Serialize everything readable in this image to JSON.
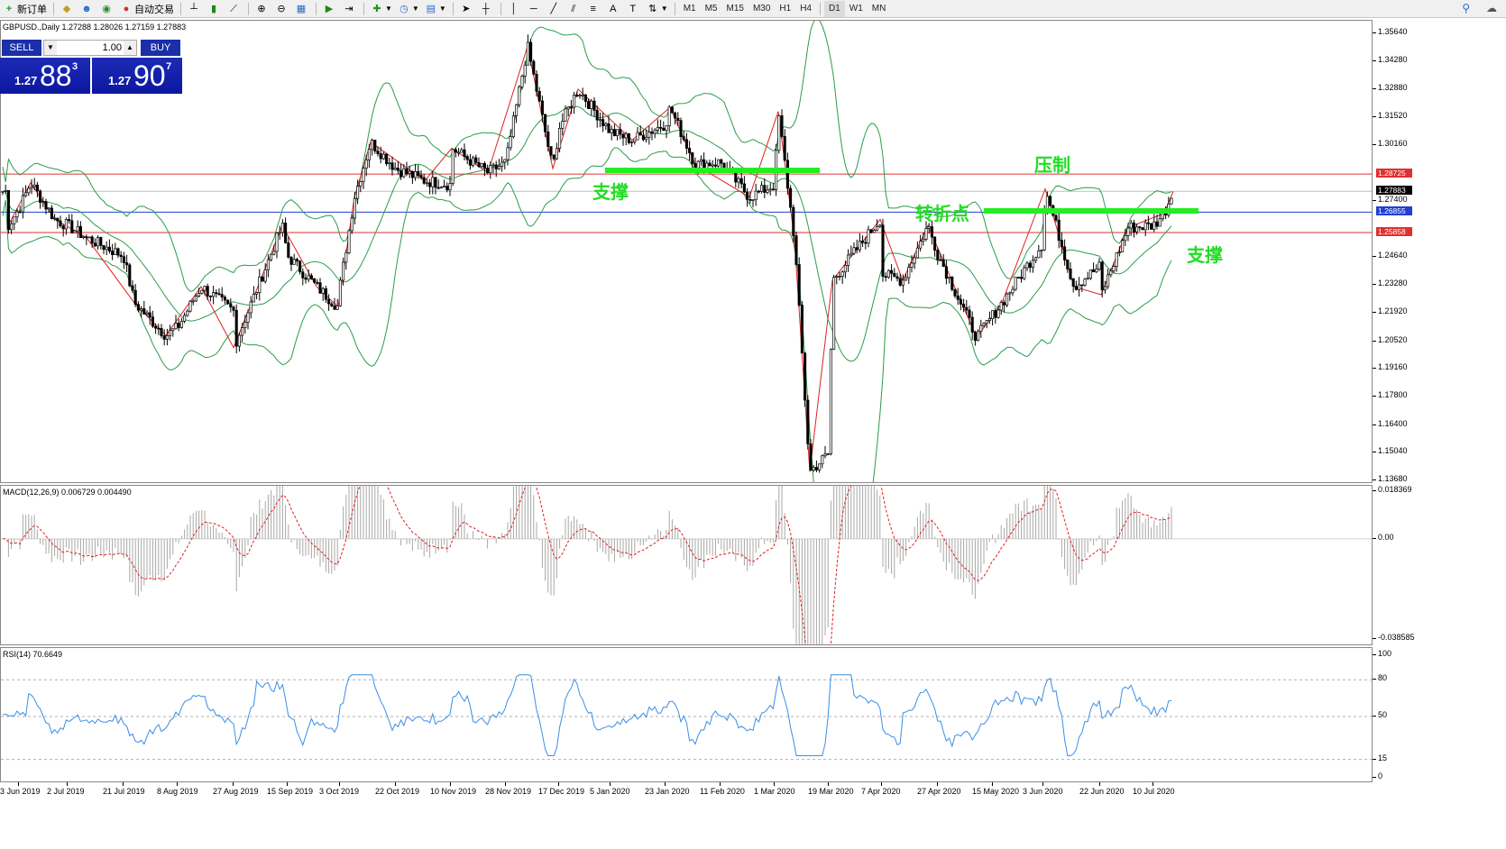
{
  "toolbar": {
    "new_order": "新订单",
    "auto_trading": "自动交易",
    "timeframes": [
      "M1",
      "M5",
      "M15",
      "M30",
      "H1",
      "H4",
      "D1",
      "W1",
      "MN"
    ]
  },
  "trade_panel": {
    "sell_label": "SELL",
    "buy_label": "BUY",
    "lot": "1.00",
    "sell_prefix": "1.27",
    "sell_big": "88",
    "sell_sup": "3",
    "buy_prefix": "1.27",
    "buy_big": "90",
    "buy_sup": "7"
  },
  "price_pane": {
    "header": "GBPUSD.,Daily  1.27288 1.28026 1.27159 1.27883",
    "axis_ticks": [
      "1.35640",
      "1.34280",
      "1.32880",
      "1.31520",
      "1.30160",
      "1.27400",
      "1.24640",
      "1.23280",
      "1.21920",
      "1.20520",
      "1.19160",
      "1.17800",
      "1.16400",
      "1.15040",
      "1.13680"
    ],
    "tags": [
      {
        "label": "1.28725",
        "color": "#e03030"
      },
      {
        "label": "1.27883",
        "color": "#000000"
      },
      {
        "label": "1.26855",
        "color": "#2040d0"
      },
      {
        "label": "1.25858",
        "color": "#e03030"
      }
    ],
    "annotations": [
      "支撑",
      "压制",
      "转折点",
      "支撑"
    ]
  },
  "macd_pane": {
    "header": "MACD(12,26,9) 0.006729 0.004490",
    "axis_ticks": [
      "0.018369",
      "0.00",
      "-0.038585"
    ]
  },
  "rsi_pane": {
    "header": "RSI(14) 70.6649",
    "axis_ticks": [
      "100",
      "80",
      "50",
      "15",
      "0"
    ]
  },
  "date_axis": [
    "3 Jun 2019",
    "2 Jul 2019",
    "21 Jul 2019",
    "8 Aug 2019",
    "27 Aug 2019",
    "15 Sep 2019",
    "3 Oct 2019",
    "22 Oct 2019",
    "10 Nov 2019",
    "28 Nov 2019",
    "17 Dec 2019",
    "5 Jan 2020",
    "23 Jan 2020",
    "11 Feb 2020",
    "1 Mar 2020",
    "19 Mar 2020",
    "7 Apr 2020",
    "27 Apr 2020",
    "15 May 2020",
    "3 Jun 2020",
    "22 Jun 2020",
    "10 Jul 2020"
  ],
  "colors": {
    "up_candle": "#ffffff",
    "down_candle": "#000000",
    "bollinger": "#2a9d4a",
    "zigzag": "#e02020",
    "resistance": "#e03030",
    "pivot_line": "#2040d0",
    "annotation": "#22dd22",
    "macd_signal": "#e02020",
    "rsi_line": "#3a8ee6"
  },
  "chart_data": {
    "type": "candlestick",
    "symbol": "GBPUSD.",
    "timeframe": "Daily",
    "ohlc_last": {
      "open": 1.27288,
      "high": 1.28026,
      "low": 1.27159,
      "close": 1.27883
    },
    "horizontal_lines": [
      1.28725,
      1.26855,
      1.25858
    ],
    "keypoints": [
      {
        "date": "3 Jun 2019",
        "close": 1.27
      },
      {
        "date": "2 Jul 2019",
        "close": 1.262
      },
      {
        "date": "21 Jul 2019",
        "close": 1.247
      },
      {
        "date": "8 Aug 2019",
        "close": 1.212
      },
      {
        "date": "27 Aug 2019",
        "close": 1.22
      },
      {
        "date": "15 Sep 2019",
        "close": 1.247
      },
      {
        "date": "3 Oct 2019",
        "close": 1.232
      },
      {
        "date": "22 Oct 2019",
        "close": 1.29
      },
      {
        "date": "10 Nov 2019",
        "close": 1.282
      },
      {
        "date": "28 Nov 2019",
        "close": 1.293
      },
      {
        "date": "17 Dec 2019",
        "close": 1.31
      },
      {
        "date": "5 Jan 2020",
        "close": 1.308
      },
      {
        "date": "23 Jan 2020",
        "close": 1.312
      },
      {
        "date": "11 Feb 2020",
        "close": 1.293
      },
      {
        "date": "1 Mar 2020",
        "close": 1.282
      },
      {
        "date": "19 Mar 2020",
        "close": 1.15
      },
      {
        "date": "7 Apr 2020",
        "close": 1.238
      },
      {
        "date": "27 Apr 2020",
        "close": 1.248
      },
      {
        "date": "15 May 2020",
        "close": 1.218
      },
      {
        "date": "3 Jun 2020",
        "close": 1.254
      },
      {
        "date": "22 Jun 2020",
        "close": 1.242
      },
      {
        "date": "10 Jul 2020",
        "close": 1.262
      }
    ]
  }
}
